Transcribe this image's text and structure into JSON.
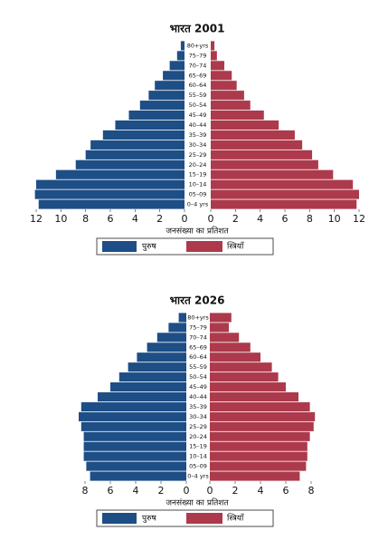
{
  "chart_data": [
    {
      "type": "pyramid",
      "title": "भारत 2001",
      "categories": [
        "80+yrs",
        "75–79",
        "70–74",
        "65–69",
        "60–64",
        "55–59",
        "50–54",
        "45–49",
        "40–44",
        "35–39",
        "30–34",
        "25–29",
        "20–24",
        "15–19",
        "10–14",
        "05–09",
        "0–4 yrs"
      ],
      "series": [
        {
          "name": "पुरुष",
          "color": "#1e4e86",
          "values": [
            0.3,
            0.6,
            1.2,
            1.75,
            2.4,
            2.9,
            3.6,
            4.5,
            5.6,
            6.6,
            7.6,
            8.0,
            8.8,
            10.4,
            12.0,
            12.1,
            11.8
          ]
        },
        {
          "name": "स्त्रियाँ",
          "color": "#ad3a4c",
          "values": [
            0.3,
            0.5,
            1.1,
            1.7,
            2.1,
            2.7,
            3.2,
            4.3,
            5.5,
            6.8,
            7.4,
            8.2,
            8.7,
            9.9,
            11.5,
            12.0,
            11.8
          ]
        }
      ],
      "xlabel": "जनसंख्या का प्रतिशत",
      "xlim": [
        0,
        12
      ],
      "xticks": [
        0,
        2,
        4,
        6,
        8,
        10,
        12
      ]
    },
    {
      "type": "pyramid",
      "title": "भारत 2026",
      "categories": [
        "80+yrs",
        "75–79",
        "70–74",
        "65–69",
        "60–64",
        "55–59",
        "50–54",
        "45–49",
        "40–44",
        "35–39",
        "30–34",
        "25–29",
        "20–24",
        "15–19",
        "10–14",
        "05–09",
        "0–4 yrs"
      ],
      "series": [
        {
          "name": "पुरुष",
          "color": "#1e4e86",
          "values": [
            0.6,
            1.4,
            2.3,
            3.1,
            3.9,
            4.6,
            5.3,
            6.0,
            7.0,
            8.3,
            8.5,
            8.3,
            8.1,
            8.1,
            8.1,
            7.9,
            7.6
          ]
        },
        {
          "name": "स्त्रियाँ",
          "color": "#ad3a4c",
          "values": [
            1.7,
            1.5,
            2.3,
            3.2,
            4.0,
            4.9,
            5.4,
            6.0,
            7.0,
            7.9,
            8.3,
            8.2,
            7.9,
            7.7,
            7.7,
            7.6,
            7.1
          ]
        }
      ],
      "xlabel": "जनसंख्या का प्रतिशत",
      "xlim": [
        0,
        8
      ],
      "xticks": [
        0,
        2,
        4,
        6,
        8
      ]
    }
  ]
}
